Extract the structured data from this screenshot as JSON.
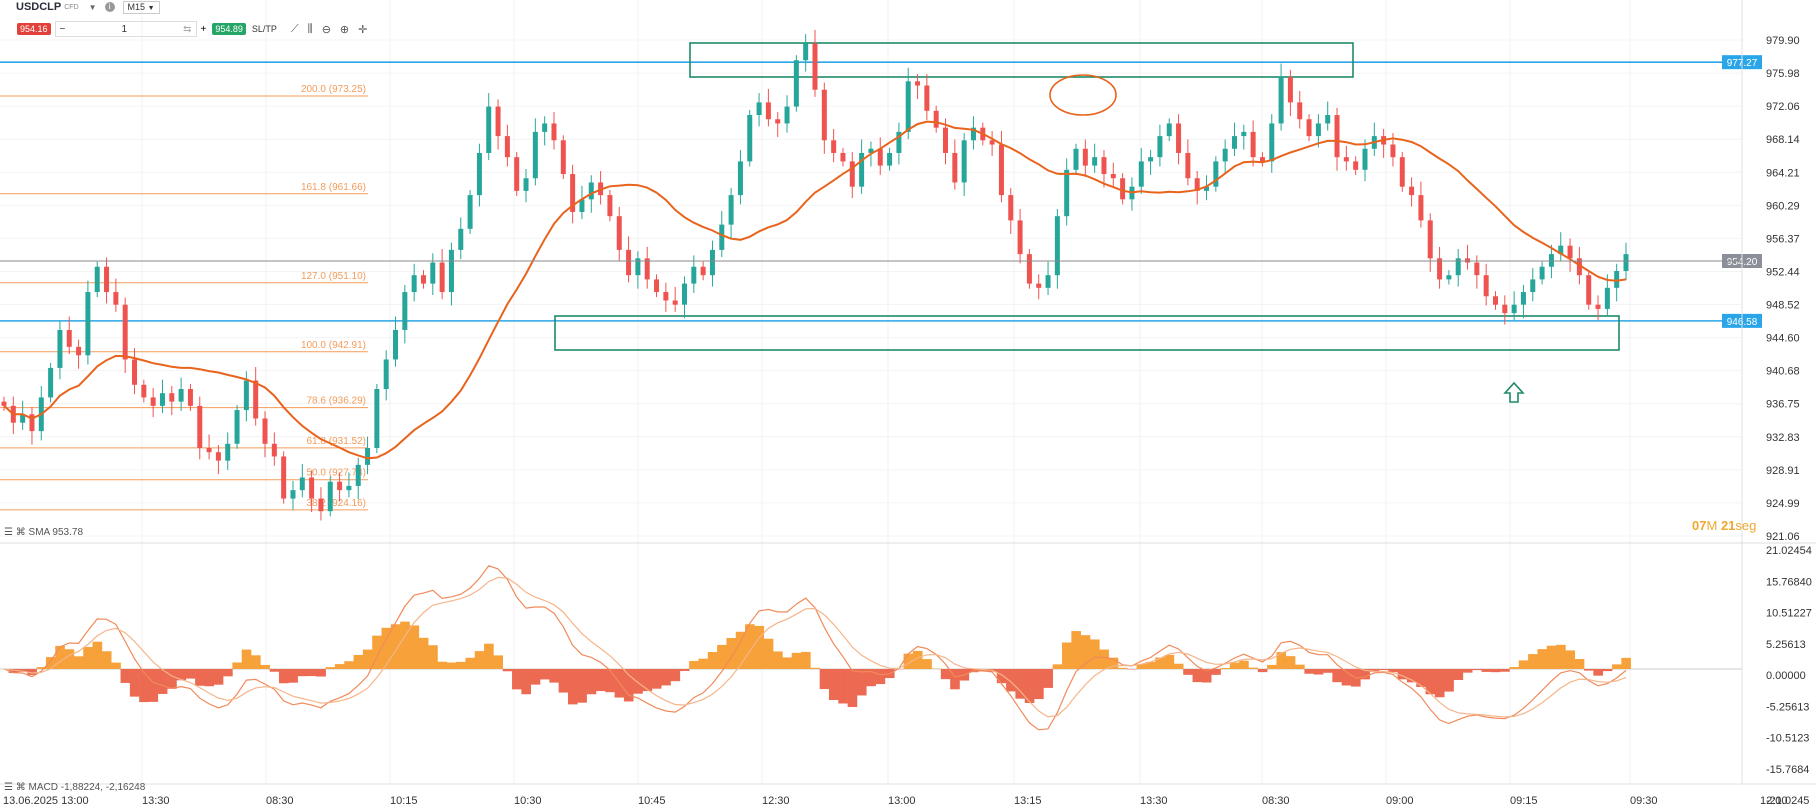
{
  "toolbar": {
    "symbol": "USDCLP",
    "symbol_sub": "CFD",
    "timeframe": "M15",
    "sell_price": "954.16",
    "quantity": "1",
    "buy_price": "954.89",
    "sltp_label": "SL/TP",
    "minus": "−",
    "plus": "+"
  },
  "price_axis_labels": [
    "979.90",
    "975.98",
    "972.06",
    "968.14",
    "964.21",
    "960.29",
    "956.37",
    "952.44",
    "948.52",
    "944.60",
    "940.68",
    "936.75",
    "932.83",
    "928.91",
    "924.99",
    "921.06"
  ],
  "macd_axis_labels": [
    "21.02454",
    "15.76840",
    "10.51227",
    "5.25613",
    "0.00000",
    "-5.25613",
    "-10.5123",
    "-15.7684",
    "-21.0245"
  ],
  "time_axis_labels": [
    "13.06.2025 13:00",
    "13:30",
    "08:30",
    "10:15",
    "10:30",
    "10:45",
    "12:30",
    "13:00",
    "13:15",
    "13:30",
    "08:30",
    "09:00",
    "09:15",
    "09:30",
    "12:00"
  ],
  "current_price_label": "954.20",
  "hline_upper_label": "977.27",
  "hline_lower_label": "946.58",
  "sma_label": "SMA 953.78",
  "macd_label": "MACD -1,88224, -2,16248",
  "countdown": {
    "minutes": "07",
    "m": "M",
    "seconds": "21",
    "seg": "seg"
  },
  "fib_levels": [
    {
      "label": "200.0 (973.25)",
      "price": 973.25
    },
    {
      "label": "161.8 (961.66)",
      "price": 961.66
    },
    {
      "label": "127.0 (951.10)",
      "price": 951.1
    },
    {
      "label": "100.0 (942.91)",
      "price": 942.91
    },
    {
      "label": "78.6 (936.29)",
      "price": 936.29
    },
    {
      "label": "61.8 (931.52)",
      "price": 931.52
    },
    {
      "label": "50.0 (927.74)",
      "price": 927.74
    },
    {
      "label": "38.2 (924.16)",
      "price": 924.16
    }
  ],
  "colors": {
    "up": "#26a69a",
    "down": "#ef5350",
    "sma": "#e8631c",
    "hline": "#2aa6e8",
    "fib": "#f39c5a",
    "box": "#1f8a6a",
    "macd_pos": "#f7a13a",
    "macd_neg": "#ec6a52",
    "countdown": "#f0a830"
  },
  "chart_data": {
    "type": "candlestick",
    "ylim": [
      921.06,
      981.86
    ],
    "macd_ylim": [
      -21.02454,
      21.02454
    ],
    "close": [
      936.5,
      934.5,
      935.5,
      933.5,
      937.5,
      941.0,
      945.5,
      943.5,
      942.5,
      950.0,
      953.0,
      950.0,
      948.5,
      942.0,
      939.0,
      937.5,
      936.5,
      938.0,
      937.0,
      938.5,
      936.5,
      931.5,
      931.0,
      930.0,
      932.0,
      936.0,
      939.5,
      935.0,
      932.0,
      930.5,
      925.5,
      926.5,
      928.0,
      925.5,
      924.0,
      927.5,
      926.5,
      927.0,
      929.5,
      931.5,
      938.5,
      942.0,
      945.5,
      950.0,
      952.0,
      951.0,
      953.5,
      950.0,
      955.0,
      957.5,
      961.5,
      966.5,
      972.0,
      968.5,
      966.0,
      962.0,
      963.5,
      969.0,
      970.0,
      968.0,
      964.0,
      959.5,
      961.0,
      963.0,
      961.5,
      959.0,
      955.0,
      952.0,
      954.0,
      951.5,
      950.0,
      949.0,
      948.5,
      951.0,
      953.0,
      952.0,
      955.0,
      958.0,
      961.5,
      965.5,
      971.0,
      972.5,
      970.5,
      970.0,
      972.0,
      977.5,
      979.5,
      974.0,
      968.0,
      966.5,
      965.5,
      962.5,
      966.5,
      967.0,
      965.0,
      966.5,
      969.0,
      975.0,
      974.5,
      971.5,
      969.5,
      966.5,
      963.0,
      968.0,
      969.5,
      968.0,
      967.5,
      961.5,
      958.5,
      954.5,
      951.0,
      950.5,
      952.0,
      959.0,
      964.5,
      967.0,
      965.0,
      966.0,
      964.0,
      963.5,
      961.0,
      962.5,
      965.5,
      966.0,
      968.5,
      970.0,
      966.5,
      963.5,
      962.0,
      962.5,
      965.5,
      967.0,
      968.5,
      969.0,
      966.0,
      965.5,
      970.0,
      975.5,
      972.5,
      970.5,
      968.5,
      970.0,
      971.0,
      966.0,
      965.5,
      964.5,
      967.0,
      968.5,
      967.5,
      966.0,
      962.5,
      961.5,
      958.5,
      954.0,
      951.5,
      952.0,
      954.0,
      953.5,
      952.0,
      949.5,
      948.5,
      947.5,
      948.5,
      950.0,
      951.5,
      953.0,
      954.5,
      955.5,
      954.0,
      952.0,
      948.5,
      948.0,
      950.5,
      952.5,
      954.5
    ]
  }
}
